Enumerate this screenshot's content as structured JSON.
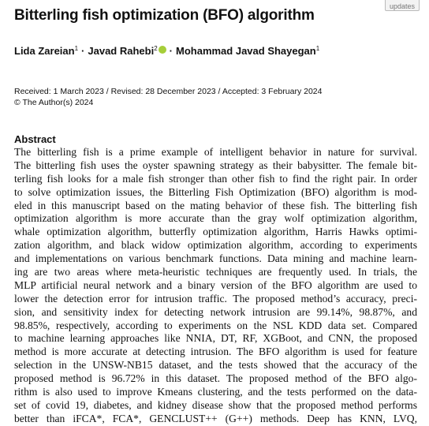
{
  "badge": "updates",
  "title": "Bitterling fish optimization (BFO) algorithm",
  "authors": [
    {
      "name": "Lida Zareian",
      "affiliation": "1"
    },
    {
      "name": "Javad Rahebi",
      "affiliation": "2",
      "orcid": true
    },
    {
      "name": "Mohammad Javad Shayegan",
      "affiliation": "1"
    }
  ],
  "author_separator": "·",
  "dates": "Received: 1 March 2023 / Revised: 28 December 2023 / Accepted: 3 February 2024",
  "copyright": "© The Author(s) 2024",
  "abstract": {
    "heading": "Abstract",
    "lines": [
      "The bitterling fish is a prime example of intelligent behavior in nature for survival.",
      "The bitterling fish uses the oyster spawning strategy as their babysitter. The female bit-",
      "terling fish looks for a male fish stronger than other fish to find the right pair. In order",
      "to solve optimization issues, the Bitterling Fish Optimization (BFO) algorithm is mod-",
      "eled in this manuscript based on the mating behavior of these fish. The bitterling fish",
      "optimization algorithm is more accurate than the gray wolf optimization algorithm,",
      "whale optimization algorithm, butterfly optimization algorithm, Harris Hawks optimi-",
      "zation algorithm, and black widow optimization algorithm, according to experiments",
      "and implementations on various benchmark functions. Data mining and machine learn-",
      "ing are two areas where meta-heuristic techniques are frequently used. In trials, the",
      "MLP artificial neural network and a binary version of the BFO algorithm are used to",
      "lower the detection error for intrusion traffic. The proposed method’s accuracy, preci-",
      "sion, and sensitivity index for detecting network intrusion are 99.14%, 98.87%, and",
      "98.85%, respectively, according to experiments on the NSL KDD data set. Compared",
      "to machine learning approaches like NNIA, DT, RF, XGBoot, and CNN, the proposed",
      "method is more accurate at detecting intrusion. The BFO algorithm is used for feature",
      "selection in the UNSW-NB15 dataset, and the tests showed that the accuracy of the",
      "proposed method is 96.72% in this dataset. The proposed method of the BFO algo-",
      "rithm is also used to improve Kmeans clustering, and the tests performed on the data-",
      "set of covid 19, diabetes, and kidney disease show that the proposed method performs",
      "better than iFCA*, FCA*, GENCLUST++ (G++) methods. Deep has KNN, LVQ,"
    ]
  }
}
